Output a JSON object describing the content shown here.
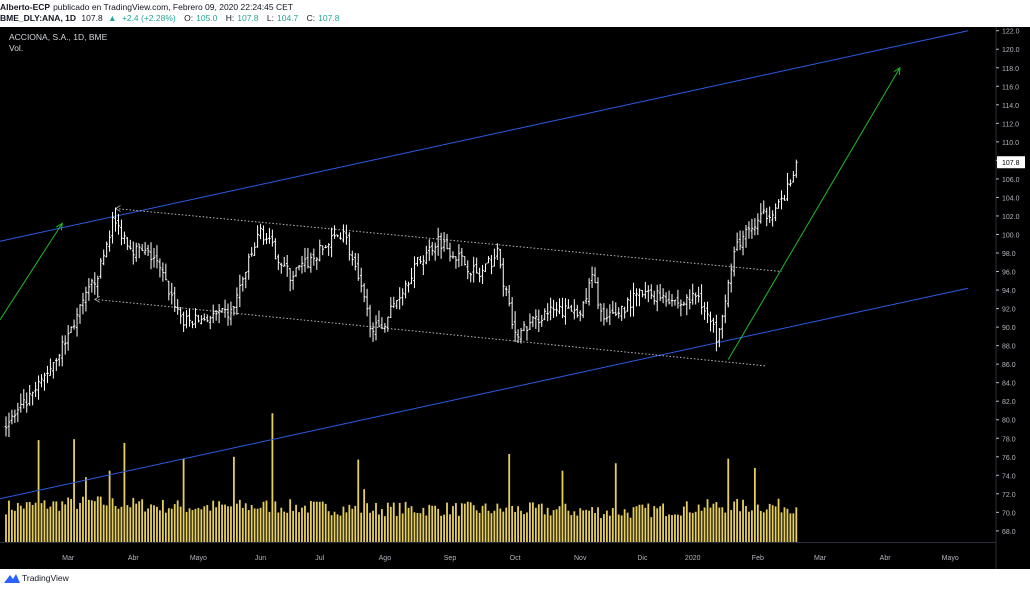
{
  "header": {
    "publisher": "Alberto-ECP",
    "published_text": "publicado en TradingView.com, Febrero 09, 2020 22:24:45 CET",
    "symbol_line": "BME_DLY:ANA, 1D",
    "last": "107.8",
    "change": "+2.4 (+2.28%)",
    "o_label": "O:",
    "o": "105.0",
    "h_label": "H:",
    "h": "107.8",
    "l_label": "L:",
    "l": "104.7",
    "c_label": "C:",
    "c": "107.8"
  },
  "footer": {
    "brand": "TradingView"
  },
  "colors": {
    "background": "#000000",
    "bars": "#ffffff",
    "volume": "#e7cf5f",
    "channel": "#2c5be6",
    "arrows": "#1fba2a",
    "dotted": "#b9b9b9",
    "axis_text": "#b2b5be"
  },
  "chart_data": {
    "type": "ohlc",
    "title": "ACCIONA, S.A., 1D, BME",
    "subtitle": "Vol.",
    "ylim": [
      66.8,
      122.4
    ],
    "y_ticks": [
      68.0,
      70.0,
      72.0,
      74.0,
      76.0,
      78.0,
      80.0,
      82.0,
      84.0,
      86.0,
      88.0,
      90.0,
      92.0,
      94.0,
      96.0,
      98.0,
      100.0,
      102.0,
      104.0,
      106.0,
      108.0,
      110.0,
      112.0,
      114.0,
      116.0,
      118.0,
      120.0,
      122.0
    ],
    "x_ticks": [
      "Mar",
      "Abr",
      "Mayo",
      "Jun",
      "Jul",
      "Ago",
      "Sep",
      "Oct",
      "Nov",
      "Dic",
      "2020",
      "Feb",
      "Mar",
      "Abr",
      "Mayo"
    ],
    "x_tick_index": [
      21,
      43,
      65,
      86,
      106,
      128,
      150,
      172,
      194,
      215,
      232,
      254,
      275,
      297,
      319
    ],
    "last_price_label": "107.8",
    "price_anchors": [
      [
        0,
        79.5
      ],
      [
        9,
        82.5
      ],
      [
        20,
        88.5
      ],
      [
        32,
        96.5
      ],
      [
        36,
        101.5
      ],
      [
        43,
        98.5
      ],
      [
        50,
        97.5
      ],
      [
        60,
        90.5
      ],
      [
        76,
        91.5
      ],
      [
        86,
        100.5
      ],
      [
        96,
        95.5
      ],
      [
        104,
        97.5
      ],
      [
        114,
        100.5
      ],
      [
        123,
        90.5
      ],
      [
        126,
        89.5
      ],
      [
        138,
        96.5
      ],
      [
        146,
        99.5
      ],
      [
        160,
        95.5
      ],
      [
        166,
        98.0
      ],
      [
        172,
        89.0
      ],
      [
        182,
        91.5
      ],
      [
        195,
        92.0
      ],
      [
        198,
        95.5
      ],
      [
        202,
        90.5
      ],
      [
        214,
        93.5
      ],
      [
        222,
        93.5
      ],
      [
        228,
        92.5
      ],
      [
        234,
        93.5
      ],
      [
        240,
        89.0
      ],
      [
        247,
        99.0
      ],
      [
        256,
        102.0
      ],
      [
        262,
        103.5
      ],
      [
        266,
        106.0
      ],
      [
        267,
        107.8
      ]
    ],
    "volume_anchors": [
      [
        0,
        70.5
      ],
      [
        30,
        71.0
      ],
      [
        60,
        70.5
      ],
      [
        90,
        70.6
      ],
      [
        120,
        70.3
      ],
      [
        150,
        70.3
      ],
      [
        180,
        70.2
      ],
      [
        210,
        70.0
      ],
      [
        240,
        70.6
      ],
      [
        267,
        70.6
      ]
    ],
    "volume_spikes": [
      [
        11,
        77.8
      ],
      [
        23,
        77.9
      ],
      [
        27,
        73.8
      ],
      [
        35,
        74.5
      ],
      [
        40,
        77.5
      ],
      [
        60,
        75.8
      ],
      [
        77,
        76.0
      ],
      [
        90,
        80.7
      ],
      [
        119,
        75.7
      ],
      [
        121,
        72.5
      ],
      [
        170,
        76.3
      ],
      [
        188,
        74.5
      ],
      [
        206,
        75.3
      ],
      [
        244,
        75.8
      ],
      [
        253,
        74.8
      ]
    ],
    "channel_lines": [
      [
        [
          -3,
          99.2
        ],
        [
          325,
          122.0
        ]
      ],
      [
        [
          -3,
          71.4
        ],
        [
          325,
          94.2
        ]
      ]
    ],
    "dotted_lines": [
      [
        [
          37,
          102.8
        ],
        [
          262,
          96.0
        ]
      ],
      [
        [
          30,
          93.0
        ],
        [
          257,
          85.8
        ]
      ]
    ],
    "arrows": [
      [
        [
          -2,
          90.8
        ],
        [
          19,
          101.2
        ]
      ],
      [
        [
          244,
          86.5
        ],
        [
          302,
          118.0
        ]
      ]
    ]
  }
}
